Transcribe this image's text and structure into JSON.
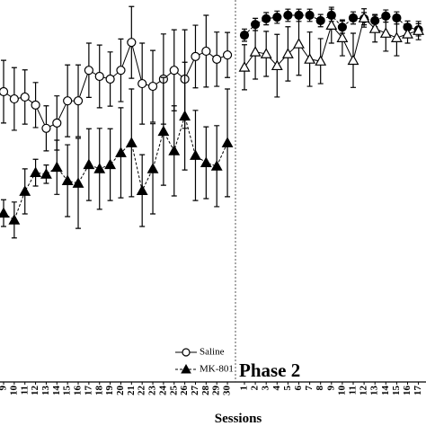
{
  "chart_data": [
    {
      "type": "line",
      "x_label": "Sessions",
      "categories": [
        "9",
        "10",
        "11",
        "12",
        "13",
        "14",
        "15",
        "16",
        "17",
        "18",
        "19",
        "20",
        "21",
        "22",
        "23",
        "24",
        "25",
        "26",
        "27",
        "28",
        "29",
        "30"
      ],
      "ylim": [
        0,
        100
      ],
      "series": [
        {
          "name": "Saline",
          "color": "#000000",
          "marker": "circle",
          "filled": false,
          "dashed": false,
          "values": [
            76.0,
            74.1,
            74.6,
            72.5,
            66.4,
            67.8,
            73.6,
            73.6,
            81.6,
            80.0,
            79.3,
            81.6,
            88.9,
            78.1,
            77.4,
            79.3,
            81.6,
            79.3,
            85.2,
            86.6,
            84.5,
            85.6
          ],
          "errors": [
            8.2,
            8.2,
            7.1,
            5.9,
            5.9,
            7.1,
            9.4,
            9.4,
            7.1,
            8.2,
            7.1,
            8.2,
            9.4,
            10.6,
            9.4,
            11.8,
            10.6,
            12.9,
            8.2,
            9.4,
            7.1,
            5.9
          ]
        },
        {
          "name": "MK-801",
          "color": "#000000",
          "marker": "triangle",
          "filled": true,
          "dashed": true,
          "values": [
            44.2,
            42.4,
            49.9,
            54.8,
            54.4,
            56.2,
            52.7,
            52.0,
            56.9,
            55.8,
            56.9,
            60.0,
            62.6,
            50.1,
            55.8,
            65.6,
            60.5,
            69.6,
            59.3,
            57.4,
            56.5,
            62.6
          ],
          "errors": [
            3.5,
            4.7,
            5.9,
            3.5,
            2.4,
            7.1,
            9.4,
            11.8,
            9.4,
            10.6,
            9.4,
            11.8,
            14.1,
            9.4,
            11.8,
            14.1,
            11.8,
            14.1,
            11.8,
            9.4,
            10.6,
            14.1
          ]
        }
      ]
    },
    {
      "type": "line",
      "title": "Phase 2",
      "categories": [
        "1",
        "2",
        "3",
        "4",
        "5",
        "6",
        "7",
        "8",
        "9",
        "10",
        "11",
        "12",
        "13",
        "14",
        "15",
        "16",
        "17"
      ],
      "ylim": [
        0,
        100
      ],
      "series": [
        {
          "color": "#000000",
          "marker": "circle",
          "filled": true,
          "dashed": true,
          "values": [
            90.8,
            93.6,
            95.1,
            95.5,
            96.0,
            96.0,
            96.0,
            94.6,
            96.0,
            92.9,
            95.3,
            95.1,
            94.6,
            95.8,
            95.3,
            92.9,
            92.2
          ],
          "errors": [
            1.6,
            1.6,
            1.6,
            1.6,
            1.6,
            1.6,
            1.6,
            1.6,
            1.6,
            1.6,
            1.6,
            1.6,
            1.6,
            1.6,
            1.6,
            1.6,
            1.6
          ]
        },
        {
          "color": "#000000",
          "marker": "triangle",
          "filled": false,
          "dashed": false,
          "values": [
            82.4,
            86.4,
            85.9,
            82.8,
            85.9,
            88.5,
            84.5,
            84.0,
            93.4,
            90.1,
            84.2,
            95.3,
            92.5,
            91.3,
            90.1,
            91.1,
            92.0
          ],
          "errors": [
            5.9,
            7.1,
            5.9,
            8.2,
            7.1,
            8.2,
            7.1,
            5.9,
            4.7,
            4.7,
            7.1,
            2.4,
            3.5,
            4.7,
            4.7,
            2.4,
            2.4
          ]
        }
      ]
    }
  ]
}
